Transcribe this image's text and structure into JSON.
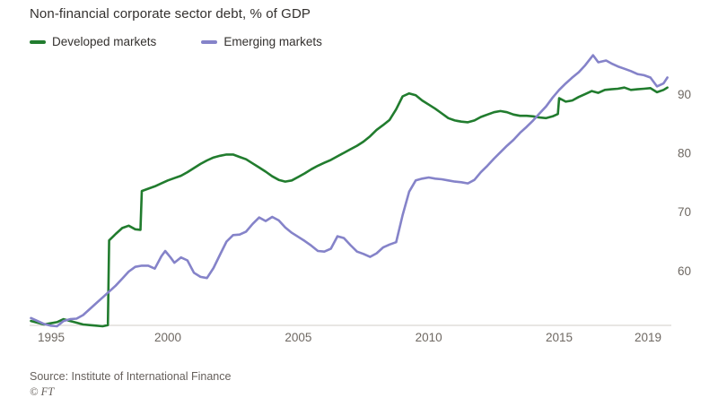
{
  "title": "Non-financial corporate sector debt, % of GDP",
  "legend": {
    "items": [
      {
        "label": "Developed markets",
        "color": "#217c2e"
      },
      {
        "label": "Emerging markets",
        "color": "#8583c9"
      }
    ]
  },
  "footer": {
    "source": "Source: Institute of International Finance",
    "credit": "© FT"
  },
  "chart_data": {
    "type": "line",
    "title": "Non-financial corporate sector debt, % of GDP",
    "xlabel": "",
    "ylabel": "% of GDP",
    "xlim": [
      1994.7,
      2019.3
    ],
    "ylim": [
      50.75,
      97.4
    ],
    "x_ticks": [
      1995,
      2000,
      2005,
      2010,
      2015,
      2019
    ],
    "y_ticks": [
      60,
      70,
      80,
      90
    ],
    "y_axis_side": "right",
    "grid": false,
    "legend_position": "top-left",
    "colors": {
      "axis_line": "#d2ccc7",
      "tick_text": "#6e6862"
    },
    "series": [
      {
        "name": "Developed markets",
        "color": "#217c2e",
        "points": [
          [
            1994.75,
            51.5
          ],
          [
            1995.0,
            51.2
          ],
          [
            1995.25,
            50.9
          ],
          [
            1995.5,
            51.1
          ],
          [
            1995.75,
            51.3
          ],
          [
            1996.0,
            51.8
          ],
          [
            1996.25,
            51.5
          ],
          [
            1996.5,
            51.2
          ],
          [
            1996.75,
            50.9
          ],
          [
            1997.0,
            50.8
          ],
          [
            1997.25,
            50.7
          ],
          [
            1997.5,
            50.6
          ],
          [
            1997.7,
            50.8
          ],
          [
            1997.75,
            65.2
          ],
          [
            1998.0,
            66.3
          ],
          [
            1998.25,
            67.3
          ],
          [
            1998.5,
            67.7
          ],
          [
            1998.75,
            67.1
          ],
          [
            1998.95,
            67.0
          ],
          [
            1999.0,
            73.6
          ],
          [
            1999.25,
            74.0
          ],
          [
            1999.5,
            74.4
          ],
          [
            1999.75,
            74.9
          ],
          [
            2000.0,
            75.4
          ],
          [
            2000.25,
            75.8
          ],
          [
            2000.5,
            76.2
          ],
          [
            2000.75,
            76.8
          ],
          [
            2001.0,
            77.5
          ],
          [
            2001.25,
            78.2
          ],
          [
            2001.5,
            78.8
          ],
          [
            2001.75,
            79.3
          ],
          [
            2002.0,
            79.6
          ],
          [
            2002.25,
            79.8
          ],
          [
            2002.5,
            79.8
          ],
          [
            2002.75,
            79.4
          ],
          [
            2003.0,
            79.0
          ],
          [
            2003.25,
            78.3
          ],
          [
            2003.5,
            77.6
          ],
          [
            2003.75,
            76.9
          ],
          [
            2004.0,
            76.1
          ],
          [
            2004.25,
            75.5
          ],
          [
            2004.5,
            75.2
          ],
          [
            2004.75,
            75.4
          ],
          [
            2005.0,
            76.0
          ],
          [
            2005.25,
            76.6
          ],
          [
            2005.5,
            77.3
          ],
          [
            2005.75,
            77.9
          ],
          [
            2006.0,
            78.4
          ],
          [
            2006.25,
            78.9
          ],
          [
            2006.5,
            79.5
          ],
          [
            2006.75,
            80.1
          ],
          [
            2007.0,
            80.7
          ],
          [
            2007.25,
            81.3
          ],
          [
            2007.5,
            82.0
          ],
          [
            2007.75,
            82.9
          ],
          [
            2008.0,
            84.0
          ],
          [
            2008.25,
            84.8
          ],
          [
            2008.5,
            85.7
          ],
          [
            2008.75,
            87.5
          ],
          [
            2009.0,
            89.7
          ],
          [
            2009.25,
            90.2
          ],
          [
            2009.5,
            89.9
          ],
          [
            2009.75,
            89.0
          ],
          [
            2010.0,
            88.3
          ],
          [
            2010.25,
            87.6
          ],
          [
            2010.5,
            86.8
          ],
          [
            2010.75,
            86.0
          ],
          [
            2011.0,
            85.6
          ],
          [
            2011.25,
            85.4
          ],
          [
            2011.5,
            85.3
          ],
          [
            2011.75,
            85.6
          ],
          [
            2012.0,
            86.2
          ],
          [
            2012.25,
            86.6
          ],
          [
            2012.5,
            87.0
          ],
          [
            2012.75,
            87.2
          ],
          [
            2013.0,
            87.0
          ],
          [
            2013.25,
            86.6
          ],
          [
            2013.5,
            86.4
          ],
          [
            2013.75,
            86.4
          ],
          [
            2014.0,
            86.3
          ],
          [
            2014.25,
            86.1
          ],
          [
            2014.5,
            86.0
          ],
          [
            2014.75,
            86.3
          ],
          [
            2014.95,
            86.7
          ],
          [
            2015.0,
            89.4
          ],
          [
            2015.25,
            88.8
          ],
          [
            2015.5,
            89.0
          ],
          [
            2015.75,
            89.6
          ],
          [
            2016.0,
            90.1
          ],
          [
            2016.25,
            90.6
          ],
          [
            2016.5,
            90.3
          ],
          [
            2016.75,
            90.8
          ],
          [
            2017.0,
            90.9
          ],
          [
            2017.25,
            91.0
          ],
          [
            2017.5,
            91.2
          ],
          [
            2017.75,
            90.8
          ],
          [
            2018.0,
            90.9
          ],
          [
            2018.25,
            91.0
          ],
          [
            2018.5,
            91.1
          ],
          [
            2018.75,
            90.4
          ],
          [
            2019.0,
            90.8
          ],
          [
            2019.15,
            91.2
          ]
        ]
      },
      {
        "name": "Emerging markets",
        "color": "#8583c9",
        "points": [
          [
            1994.75,
            52.0
          ],
          [
            1995.0,
            51.5
          ],
          [
            1995.25,
            51.0
          ],
          [
            1995.5,
            50.7
          ],
          [
            1995.75,
            50.6
          ],
          [
            1996.0,
            51.5
          ],
          [
            1996.25,
            51.8
          ],
          [
            1996.5,
            51.9
          ],
          [
            1996.75,
            52.5
          ],
          [
            1997.0,
            53.5
          ],
          [
            1997.25,
            54.5
          ],
          [
            1997.5,
            55.5
          ],
          [
            1997.75,
            56.5
          ],
          [
            1998.0,
            57.5
          ],
          [
            1998.25,
            58.7
          ],
          [
            1998.5,
            59.9
          ],
          [
            1998.75,
            60.7
          ],
          [
            1999.0,
            60.9
          ],
          [
            1999.25,
            60.9
          ],
          [
            1999.5,
            60.4
          ],
          [
            1999.75,
            62.5
          ],
          [
            1999.9,
            63.4
          ],
          [
            2000.1,
            62.3
          ],
          [
            2000.25,
            61.4
          ],
          [
            2000.5,
            62.3
          ],
          [
            2000.75,
            61.8
          ],
          [
            2001.0,
            59.7
          ],
          [
            2001.25,
            59.0
          ],
          [
            2001.5,
            58.8
          ],
          [
            2001.75,
            60.5
          ],
          [
            2002.0,
            62.8
          ],
          [
            2002.25,
            65.0
          ],
          [
            2002.5,
            66.1
          ],
          [
            2002.75,
            66.2
          ],
          [
            2003.0,
            66.7
          ],
          [
            2003.25,
            68.0
          ],
          [
            2003.5,
            69.1
          ],
          [
            2003.75,
            68.5
          ],
          [
            2004.0,
            69.2
          ],
          [
            2004.25,
            68.6
          ],
          [
            2004.5,
            67.4
          ],
          [
            2004.75,
            66.5
          ],
          [
            2005.0,
            65.8
          ],
          [
            2005.25,
            65.1
          ],
          [
            2005.5,
            64.3
          ],
          [
            2005.75,
            63.4
          ],
          [
            2006.0,
            63.3
          ],
          [
            2006.25,
            63.8
          ],
          [
            2006.5,
            65.9
          ],
          [
            2006.75,
            65.6
          ],
          [
            2007.0,
            64.4
          ],
          [
            2007.25,
            63.3
          ],
          [
            2007.5,
            62.9
          ],
          [
            2007.75,
            62.4
          ],
          [
            2008.0,
            63.0
          ],
          [
            2008.25,
            64.0
          ],
          [
            2008.5,
            64.5
          ],
          [
            2008.75,
            64.9
          ],
          [
            2009.0,
            69.5
          ],
          [
            2009.25,
            73.5
          ],
          [
            2009.5,
            75.4
          ],
          [
            2009.75,
            75.7
          ],
          [
            2010.0,
            75.9
          ],
          [
            2010.25,
            75.7
          ],
          [
            2010.5,
            75.6
          ],
          [
            2010.75,
            75.4
          ],
          [
            2011.0,
            75.2
          ],
          [
            2011.25,
            75.1
          ],
          [
            2011.5,
            74.9
          ],
          [
            2011.75,
            75.5
          ],
          [
            2012.0,
            76.8
          ],
          [
            2012.25,
            77.9
          ],
          [
            2012.5,
            79.1
          ],
          [
            2012.75,
            80.2
          ],
          [
            2013.0,
            81.3
          ],
          [
            2013.25,
            82.3
          ],
          [
            2013.5,
            83.5
          ],
          [
            2013.75,
            84.5
          ],
          [
            2014.0,
            85.6
          ],
          [
            2014.25,
            86.8
          ],
          [
            2014.5,
            88.0
          ],
          [
            2014.75,
            89.5
          ],
          [
            2015.0,
            90.8
          ],
          [
            2015.25,
            91.9
          ],
          [
            2015.5,
            92.9
          ],
          [
            2015.75,
            93.8
          ],
          [
            2016.0,
            95.0
          ],
          [
            2016.3,
            96.7
          ],
          [
            2016.5,
            95.5
          ],
          [
            2016.8,
            95.8
          ],
          [
            2017.0,
            95.3
          ],
          [
            2017.25,
            94.8
          ],
          [
            2017.5,
            94.4
          ],
          [
            2017.75,
            94.0
          ],
          [
            2018.0,
            93.5
          ],
          [
            2018.25,
            93.3
          ],
          [
            2018.5,
            92.9
          ],
          [
            2018.75,
            91.4
          ],
          [
            2019.0,
            91.9
          ],
          [
            2019.15,
            92.9
          ]
        ]
      }
    ]
  }
}
